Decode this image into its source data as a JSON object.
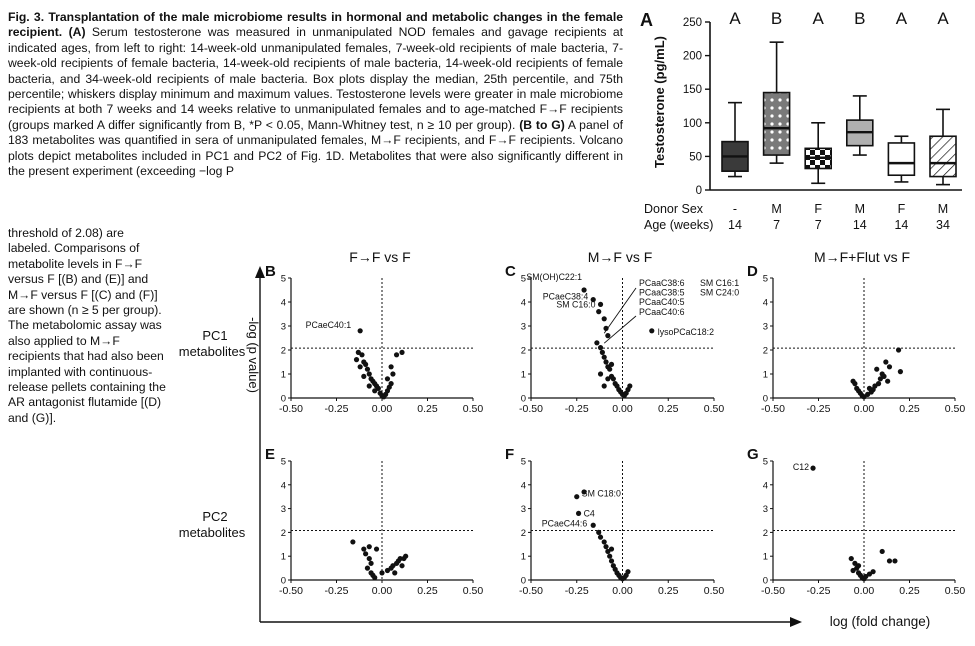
{
  "caption": {
    "fig_label": "Fig. 3.",
    "title": "Transplantation of the male microbiome results in hormonal and metabolic changes in the female recipient.",
    "panel_A_label": "(A)",
    "text_A": "Serum testosterone was measured in unmanipulated NOD females and gavage recipients at indicated ages, from left to right: 14-week-old unmanipulated females, 7-week-old recipients of male bacteria, 7-week-old recipients of female bacteria, 14-week-old recipients of male bacteria, 14-week-old recipients of female bacteria, and 34-week-old recipients of male bacteria. Box plots display the median, 25th percentile, and 75th percentile; whiskers display minimum and maximum values. Testosterone levels were greater in male microbiome recipients at both 7 weeks and 14 weeks relative to unmanipulated females and to age-matched F→F recipients (groups marked A differ significantly from B, *P < 0.05, Mann-Whitney test, n ≥ 10 per group).",
    "panel_BG_label": "(B to G)",
    "text_BG": "A panel of 183 metabolites was quantified in sera of unmanipulated females, M→F recipients, and F→F recipients. Volcano plots depict metabolites included in PC1 and PC2 of Fig. 1D. Metabolites that were also significantly different in the present experiment (exceeding −log P",
    "text_BG_narrow": "threshold of 2.08) are labeled. Comparisons of metabolite levels in F→F versus F [(B) and (E)] and M→F versus F [(C) and (F)] are shown (n ≥ 5 per group). The metabolomic assay was also applied to M→F recipients that had also been implanted with continuous-release pellets containing the AR antagonist flutamide [(D) and (G)]."
  },
  "panel_A": {
    "label": "A",
    "ylabel": "Testosterone (pg/mL)",
    "yticks": [
      "0",
      "50",
      "100",
      "150",
      "200",
      "250"
    ],
    "ylim": [
      0,
      250
    ],
    "row_label_sex": "Donor Sex",
    "row_label_age": "Age (weeks)",
    "groups": [
      {
        "sig": "A",
        "sex": "-",
        "age": "14",
        "min": 20,
        "q1": 28,
        "median": 50,
        "q3": 72,
        "max": 130,
        "fill": "dark"
      },
      {
        "sig": "B",
        "sex": "M",
        "age": "7",
        "min": 40,
        "q1": 52,
        "median": 92,
        "q3": 145,
        "max": 220,
        "fill": "grid"
      },
      {
        "sig": "A",
        "sex": "F",
        "age": "7",
        "min": 10,
        "q1": 32,
        "median": 48,
        "q3": 62,
        "max": 100,
        "fill": "checker"
      },
      {
        "sig": "B",
        "sex": "M",
        "age": "14",
        "min": 52,
        "q1": 66,
        "median": 86,
        "q3": 104,
        "max": 140,
        "fill": "light"
      },
      {
        "sig": "A",
        "sex": "F",
        "age": "14",
        "min": 12,
        "q1": 22,
        "median": 40,
        "q3": 70,
        "max": 80,
        "fill": "white"
      },
      {
        "sig": "A",
        "sex": "M",
        "age": "34",
        "min": 8,
        "q1": 20,
        "median": 40,
        "q3": 80,
        "max": 120,
        "fill": "hatch"
      }
    ]
  },
  "volcano": {
    "col_titles": [
      "F→F vs F",
      "M→F vs F",
      "M→F+Flut vs F"
    ],
    "row_labels": [
      [
        "PC1",
        "metabolites"
      ],
      [
        "PC2",
        "metabolites"
      ]
    ],
    "ylabel": "-log (p value)",
    "xlabel": "log (fold change)",
    "xticks": [
      "-0.50",
      "-0.25",
      "0.00",
      "0.25",
      "0.50"
    ],
    "yticks": [
      "0",
      "1",
      "2",
      "3",
      "4",
      "5"
    ],
    "threshold": 2.08
  },
  "chart_data": [
    {
      "type": "scatter",
      "panel": "B",
      "title": "F→F vs F",
      "row": "PC1 metabolites",
      "xlim": [
        -0.5,
        0.5
      ],
      "ylim": [
        0,
        5
      ],
      "threshold": 2.08,
      "points": [
        [
          -0.12,
          2.8
        ],
        [
          -0.13,
          1.9
        ],
        [
          -0.11,
          1.8
        ],
        [
          -0.1,
          1.5
        ],
        [
          -0.09,
          1.4
        ],
        [
          -0.12,
          1.3
        ],
        [
          -0.08,
          1.2
        ],
        [
          -0.07,
          1.0
        ],
        [
          -0.1,
          0.9
        ],
        [
          -0.06,
          0.8
        ],
        [
          -0.05,
          0.7
        ],
        [
          -0.04,
          0.6
        ],
        [
          -0.03,
          0.5
        ],
        [
          -0.02,
          0.4
        ],
        [
          -0.04,
          0.3
        ],
        [
          -0.01,
          0.2
        ],
        [
          0.0,
          0.1
        ],
        [
          0.01,
          0.05
        ],
        [
          0.02,
          0.15
        ],
        [
          0.03,
          0.3
        ],
        [
          0.04,
          0.45
        ],
        [
          0.05,
          0.6
        ],
        [
          0.03,
          0.8
        ],
        [
          0.06,
          1.0
        ],
        [
          0.05,
          1.3
        ],
        [
          0.08,
          1.8
        ],
        [
          0.11,
          1.9
        ],
        [
          -0.14,
          1.6
        ],
        [
          -0.07,
          0.5
        ]
      ],
      "labels": [
        {
          "text": "PCaeC40:1",
          "x": -0.12,
          "y": 2.8
        }
      ]
    },
    {
      "type": "scatter",
      "panel": "C",
      "title": "M→F vs F",
      "row": "PC1 metabolites",
      "xlim": [
        -0.5,
        0.5
      ],
      "ylim": [
        0,
        5
      ],
      "threshold": 2.08,
      "points": [
        [
          -0.21,
          4.5
        ],
        [
          -0.16,
          4.1
        ],
        [
          -0.12,
          3.9
        ],
        [
          -0.13,
          3.6
        ],
        [
          -0.1,
          3.3
        ],
        [
          -0.09,
          2.9
        ],
        [
          -0.08,
          2.6
        ],
        [
          0.16,
          2.8
        ],
        [
          -0.14,
          2.3
        ],
        [
          -0.12,
          2.1
        ],
        [
          -0.11,
          1.9
        ],
        [
          -0.1,
          1.7
        ],
        [
          -0.09,
          1.5
        ],
        [
          -0.08,
          1.3
        ],
        [
          -0.07,
          1.2
        ],
        [
          -0.12,
          1.0
        ],
        [
          -0.06,
          0.9
        ],
        [
          -0.05,
          0.8
        ],
        [
          -0.04,
          0.6
        ],
        [
          -0.03,
          0.5
        ],
        [
          -0.02,
          0.35
        ],
        [
          -0.01,
          0.25
        ],
        [
          0.0,
          0.15
        ],
        [
          0.01,
          0.1
        ],
        [
          0.02,
          0.2
        ],
        [
          0.03,
          0.35
        ],
        [
          0.04,
          0.5
        ],
        [
          -0.08,
          0.8
        ],
        [
          -0.1,
          0.5
        ],
        [
          -0.06,
          1.4
        ]
      ],
      "labels": [
        {
          "text": "SM(OH)C22:1",
          "x": -0.21,
          "y": 4.5
        },
        {
          "text": "PCaeC38:4",
          "x": -0.16,
          "y": 4.1
        },
        {
          "text": "SM C16:0",
          "x": -0.12,
          "y": 3.9
        },
        {
          "text": "PCaaC38:6",
          "x": -0.12,
          "y": 3.3
        },
        {
          "text": "PCaaC38:5",
          "x": -0.12,
          "y": 3.3
        },
        {
          "text": "PCaaC40:5",
          "x": -0.12,
          "y": 3.3
        },
        {
          "text": "PCaaC40:6",
          "x": -0.12,
          "y": 3.3
        },
        {
          "text": "SM C16:1",
          "x": -0.12,
          "y": 3.3
        },
        {
          "text": "SM C24:0",
          "x": -0.12,
          "y": 3.3
        },
        {
          "text": "lysoPCaC18:2",
          "x": 0.16,
          "y": 2.8
        }
      ]
    },
    {
      "type": "scatter",
      "panel": "D",
      "title": "M→F+Flut vs F",
      "row": "PC1 metabolites",
      "xlim": [
        -0.5,
        0.5
      ],
      "ylim": [
        0,
        5
      ],
      "threshold": 2.08,
      "points": [
        [
          0.19,
          2.0
        ],
        [
          0.2,
          1.1
        ],
        [
          0.12,
          1.5
        ],
        [
          0.14,
          1.3
        ],
        [
          0.1,
          1.0
        ],
        [
          0.09,
          0.8
        ],
        [
          0.08,
          0.6
        ],
        [
          0.06,
          0.5
        ],
        [
          0.05,
          0.35
        ],
        [
          0.04,
          0.25
        ],
        [
          0.02,
          0.15
        ],
        [
          0.0,
          0.05
        ],
        [
          -0.01,
          0.1
        ],
        [
          -0.02,
          0.2
        ],
        [
          -0.03,
          0.3
        ],
        [
          -0.04,
          0.4
        ],
        [
          -0.05,
          0.6
        ],
        [
          -0.06,
          0.7
        ],
        [
          0.07,
          1.2
        ],
        [
          0.11,
          0.9
        ],
        [
          0.13,
          0.7
        ],
        [
          0.03,
          0.4
        ]
      ],
      "labels": []
    },
    {
      "type": "scatter",
      "panel": "E",
      "title": "",
      "row": "PC2 metabolites",
      "xlim": [
        -0.5,
        0.5
      ],
      "ylim": [
        0,
        5
      ],
      "threshold": 2.08,
      "points": [
        [
          -0.16,
          1.6
        ],
        [
          -0.1,
          1.3
        ],
        [
          -0.09,
          1.1
        ],
        [
          -0.07,
          0.9
        ],
        [
          -0.08,
          0.5
        ],
        [
          -0.06,
          0.3
        ],
        [
          -0.05,
          0.2
        ],
        [
          -0.06,
          0.7
        ],
        [
          -0.04,
          0.1
        ],
        [
          0.0,
          0.3
        ],
        [
          0.03,
          0.4
        ],
        [
          0.05,
          0.5
        ],
        [
          0.06,
          0.6
        ],
        [
          0.08,
          0.7
        ],
        [
          0.09,
          0.8
        ],
        [
          0.1,
          0.9
        ],
        [
          0.12,
          0.9
        ],
        [
          0.13,
          1.0
        ],
        [
          0.11,
          0.6
        ],
        [
          0.07,
          0.3
        ],
        [
          -0.03,
          1.3
        ],
        [
          -0.07,
          1.4
        ]
      ],
      "labels": []
    },
    {
      "type": "scatter",
      "panel": "F",
      "title": "",
      "row": "PC2 metabolites",
      "xlim": [
        -0.5,
        0.5
      ],
      "ylim": [
        0,
        5
      ],
      "threshold": 2.08,
      "points": [
        [
          -0.25,
          3.5
        ],
        [
          -0.21,
          3.7
        ],
        [
          -0.24,
          2.8
        ],
        [
          -0.16,
          2.3
        ],
        [
          -0.13,
          2.0
        ],
        [
          -0.12,
          1.8
        ],
        [
          -0.1,
          1.6
        ],
        [
          -0.09,
          1.4
        ],
        [
          -0.08,
          1.2
        ],
        [
          -0.07,
          1.0
        ],
        [
          -0.06,
          0.8
        ],
        [
          -0.05,
          0.6
        ],
        [
          -0.04,
          0.45
        ],
        [
          -0.03,
          0.3
        ],
        [
          -0.02,
          0.2
        ],
        [
          -0.01,
          0.1
        ],
        [
          0.0,
          0.05
        ],
        [
          0.01,
          0.1
        ],
        [
          0.02,
          0.2
        ],
        [
          0.03,
          0.35
        ],
        [
          -0.06,
          1.3
        ]
      ],
      "labels": [
        {
          "text": "SM C18:0",
          "x": -0.25,
          "y": 3.5
        },
        {
          "text": "C4",
          "x": -0.24,
          "y": 2.8
        },
        {
          "text": "PCaeC44:6",
          "x": -0.16,
          "y": 2.3
        }
      ]
    },
    {
      "type": "scatter",
      "panel": "G",
      "title": "",
      "row": "PC2 metabolites",
      "xlim": [
        -0.5,
        0.5
      ],
      "ylim": [
        0,
        5
      ],
      "threshold": 2.08,
      "points": [
        [
          -0.28,
          4.7
        ],
        [
          -0.07,
          0.9
        ],
        [
          -0.05,
          0.7
        ],
        [
          -0.04,
          0.5
        ],
        [
          -0.03,
          0.3
        ],
        [
          -0.02,
          0.2
        ],
        [
          -0.01,
          0.1
        ],
        [
          0.0,
          0.05
        ],
        [
          0.01,
          0.15
        ],
        [
          0.03,
          0.25
        ],
        [
          0.05,
          0.35
        ],
        [
          0.1,
          1.2
        ],
        [
          0.14,
          0.8
        ],
        [
          0.17,
          0.8
        ],
        [
          -0.06,
          0.4
        ],
        [
          -0.03,
          0.6
        ]
      ],
      "labels": [
        {
          "text": "C12",
          "x": -0.28,
          "y": 4.7
        }
      ]
    }
  ]
}
